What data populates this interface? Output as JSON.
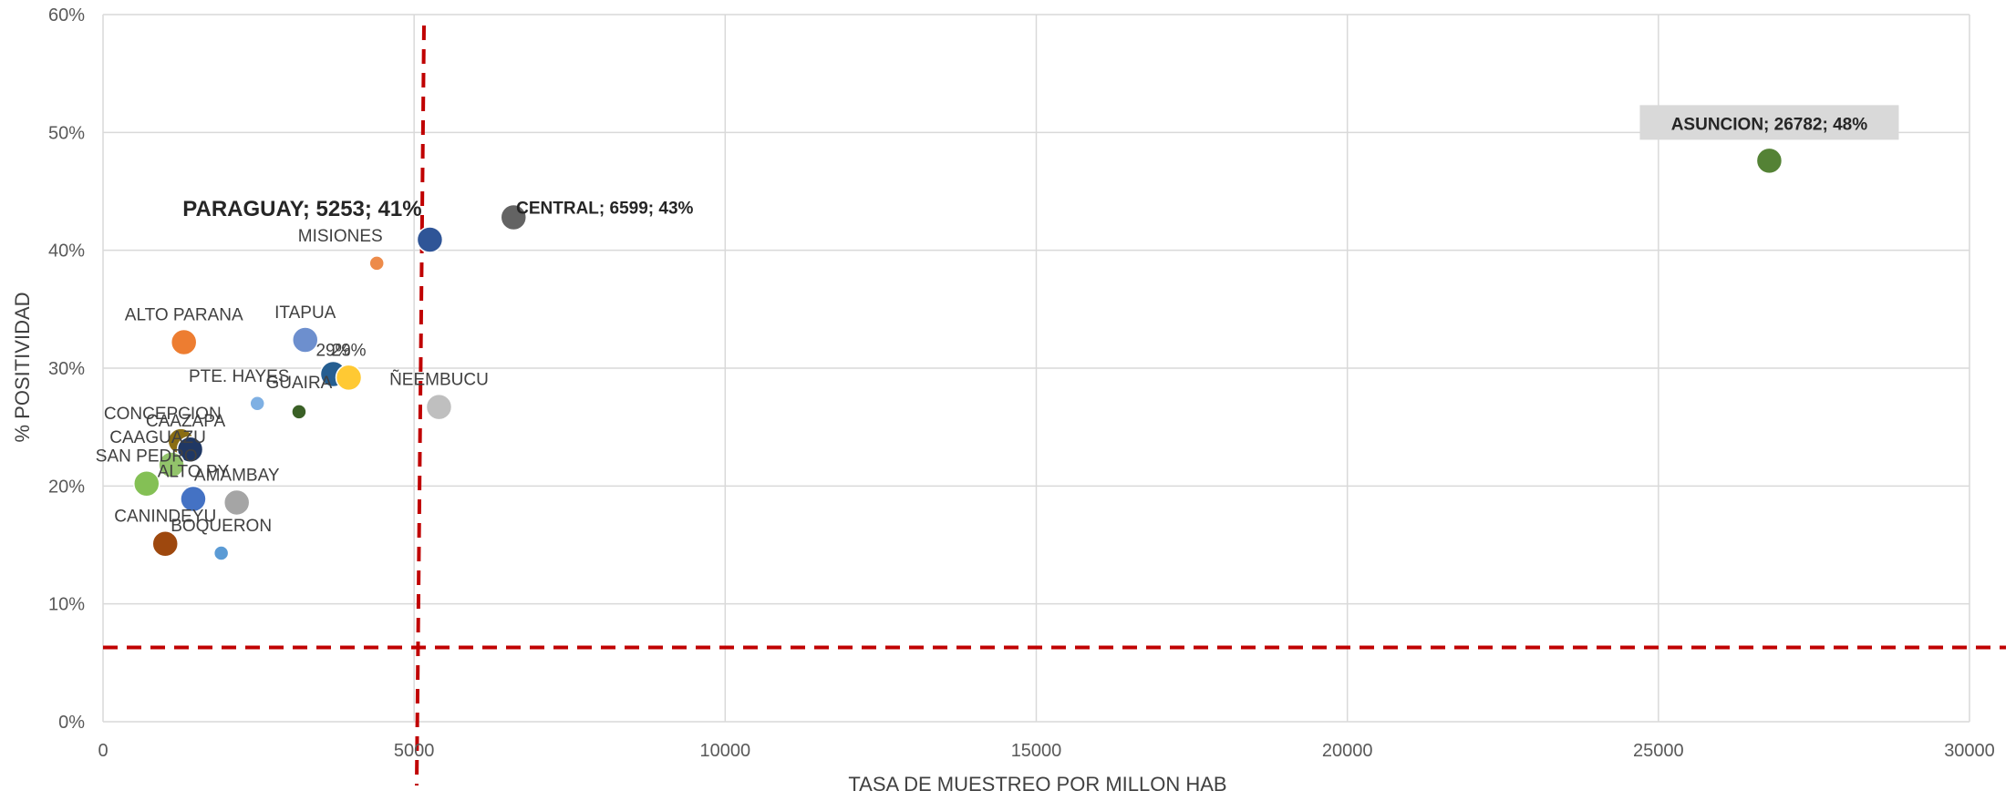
{
  "chart_data": {
    "type": "scatter",
    "title": "",
    "xlabel": "TASA DE MUESTREO POR MILLON HAB",
    "ylabel": "% POSITIVIDAD",
    "xlim": [
      0,
      30000
    ],
    "ylim": [
      0,
      60
    ],
    "x_ticks": [
      0,
      5000,
      10000,
      15000,
      20000,
      25000,
      30000
    ],
    "x_tick_labels": [
      "0",
      "5000",
      "10000",
      "15000",
      "20000",
      "25000",
      "30000"
    ],
    "y_ticks": [
      0,
      10,
      20,
      30,
      40,
      50,
      60
    ],
    "y_tick_labels": [
      "0%",
      "10%",
      "20%",
      "30%",
      "40%",
      "50%",
      "60%"
    ],
    "grid": true,
    "legend": "none",
    "reference_lines": {
      "vertical_x": 5100,
      "horizontal_y": 6.3,
      "color": "#c00000",
      "style": "dashed"
    },
    "points": [
      {
        "label": "ASUNCION; 26782; 48%",
        "x": 26782,
        "y": 47.6,
        "size": 1.0,
        "color": "#548235",
        "style": "box"
      },
      {
        "label": "CENTRAL; 6599; 43%",
        "x": 6599,
        "y": 42.8,
        "size": 1.0,
        "color": "#636363",
        "style": "bold"
      },
      {
        "label": "PARAGUAY; 5253; 41%",
        "x": 5253,
        "y": 40.9,
        "size": 1.0,
        "color": "#2f5597",
        "style": "big"
      },
      {
        "label": "MISIONES",
        "x": 4400,
        "y": 38.9,
        "size": 0.55,
        "color": "#ed8b4a",
        "style": "normal"
      },
      {
        "label": "ITAPUA",
        "x": 3250,
        "y": 32.4,
        "size": 1.0,
        "color": "#6d8fce",
        "style": "normal"
      },
      {
        "label": "ALTO PARANA",
        "x": 1300,
        "y": 32.2,
        "size": 1.0,
        "color": "#ed7d31",
        "style": "normal"
      },
      {
        "label": "29%",
        "x": 3700,
        "y": 29.5,
        "size": 1.0,
        "color": "#255e91",
        "style": "normal"
      },
      {
        "label": "29%",
        "x": 3950,
        "y": 29.2,
        "size": 1.0,
        "color": "#ffc933",
        "style": "normal"
      },
      {
        "label": "PTE. HAYES",
        "x": 2480,
        "y": 27.0,
        "size": 0.55,
        "color": "#7fb0e3",
        "style": "normal"
      },
      {
        "label": "GUAIRA",
        "x": 3150,
        "y": 26.3,
        "size": 0.55,
        "color": "#3a6026",
        "style": "normal"
      },
      {
        "label": "ÑEEMBUCU",
        "x": 5400,
        "y": 26.7,
        "size": 1.0,
        "color": "#bfbfbf",
        "style": "normal"
      },
      {
        "label": "CONCEPCION",
        "x": 1250,
        "y": 23.8,
        "size": 1.0,
        "color": "#8a6d12",
        "style": "normal"
      },
      {
        "label": "CAAZAPA",
        "x": 1400,
        "y": 23.1,
        "size": 1.0,
        "color": "#203864",
        "style": "normal"
      },
      {
        "label": "CAAGUAZU",
        "x": 1100,
        "y": 21.8,
        "size": 1.0,
        "color": "#92c36b",
        "style": "normal"
      },
      {
        "label": "SAN PEDRO",
        "x": 700,
        "y": 20.2,
        "size": 1.0,
        "color": "#84c055",
        "style": "normal"
      },
      {
        "label": "ALTO PY",
        "x": 1450,
        "y": 18.9,
        "size": 1.0,
        "color": "#4472c4",
        "style": "normal"
      },
      {
        "label": "AMAMBAY",
        "x": 2150,
        "y": 18.6,
        "size": 1.0,
        "color": "#a5a5a5",
        "style": "normal"
      },
      {
        "label": "CANINDEYU",
        "x": 1000,
        "y": 15.1,
        "size": 1.0,
        "color": "#9e480e",
        "style": "normal"
      },
      {
        "label": "BOQUERON",
        "x": 1900,
        "y": 14.3,
        "size": 0.55,
        "color": "#5b9bd5",
        "style": "normal"
      }
    ]
  }
}
